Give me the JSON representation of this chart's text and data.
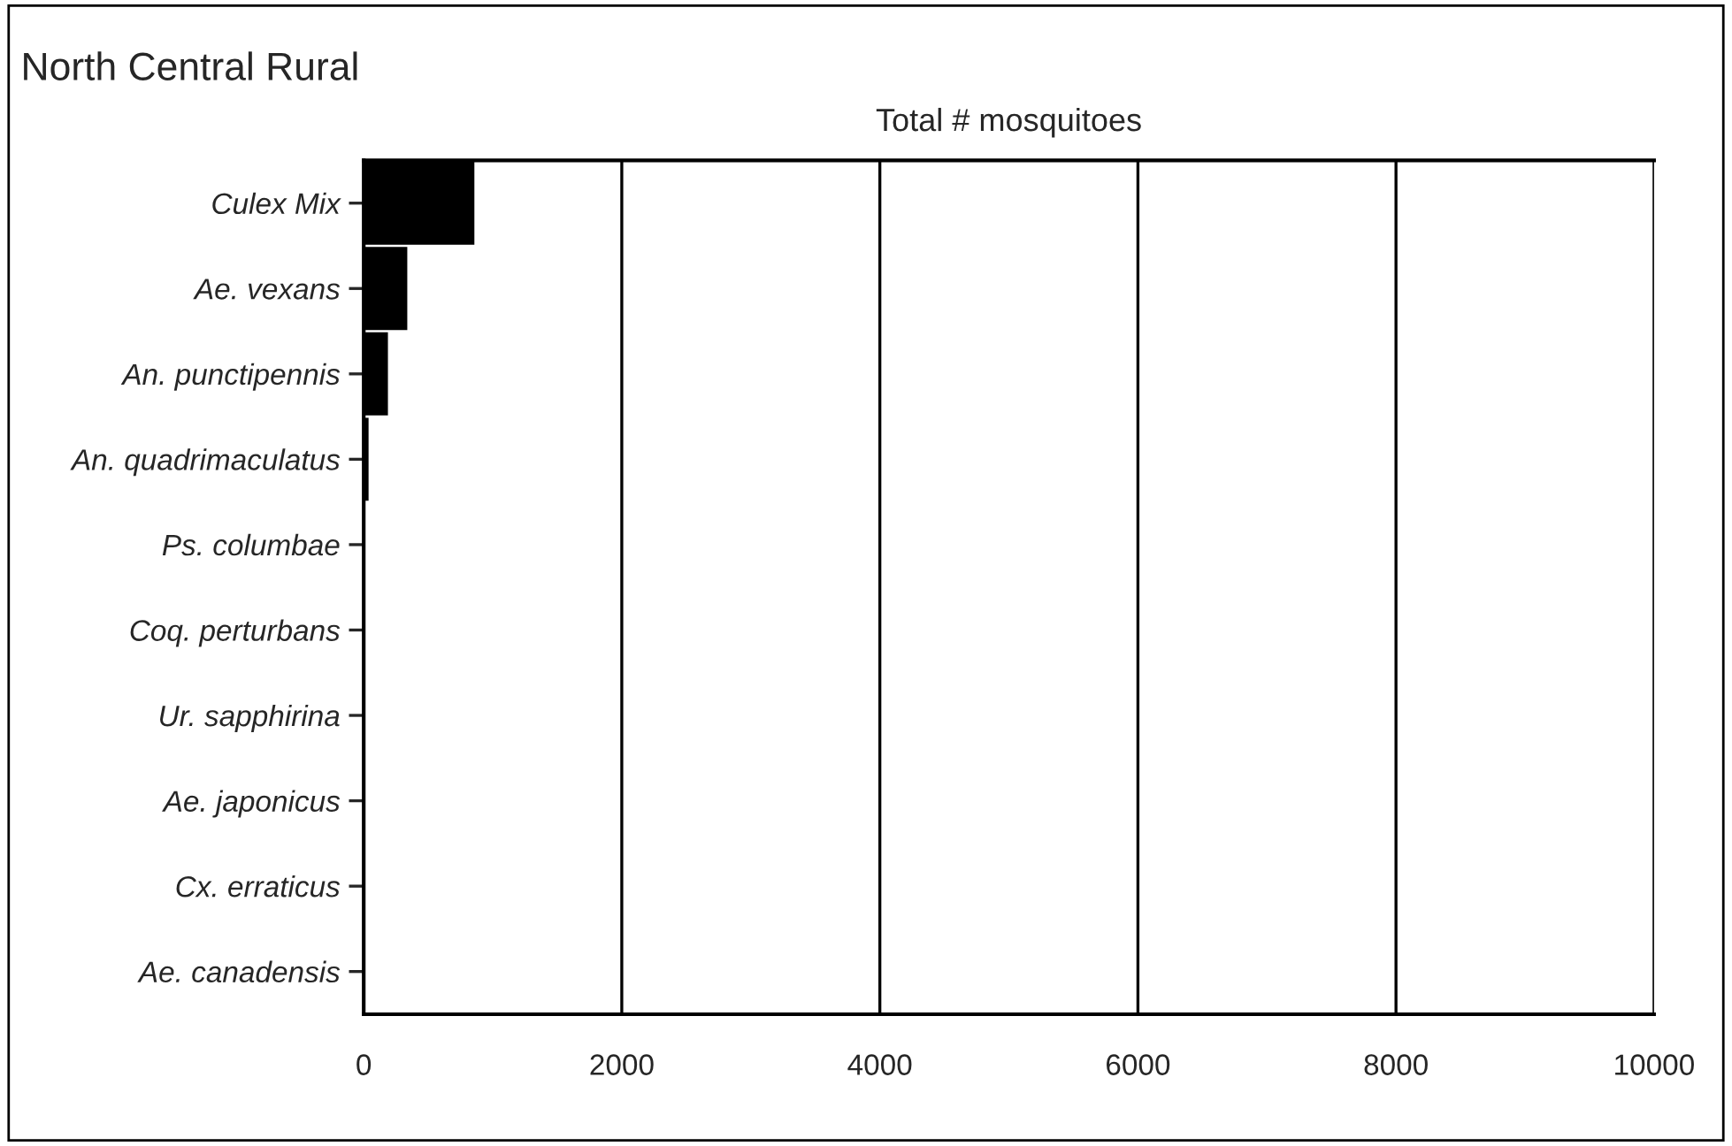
{
  "chart_data": {
    "type": "bar",
    "orientation": "horizontal",
    "title": "North Central Rural",
    "xlabel": "Total # mosquitoes",
    "categories": [
      "Culex Mix",
      "Ae. vexans",
      "An. punctipennis",
      "An. quadrimaculatus",
      "Ps. columbae",
      "Coq. perturbans",
      "Ur. sapphirina",
      "Ae. japonicus",
      "Cx. erraticus",
      "Ae. canadensis"
    ],
    "values": [
      850,
      330,
      180,
      30,
      0,
      0,
      0,
      0,
      0,
      0
    ],
    "color": "#000000",
    "xlim": [
      0,
      10000
    ],
    "xticks": [
      0,
      2000,
      4000,
      6000,
      8000,
      10000
    ],
    "grid": "x",
    "legend": false
  }
}
